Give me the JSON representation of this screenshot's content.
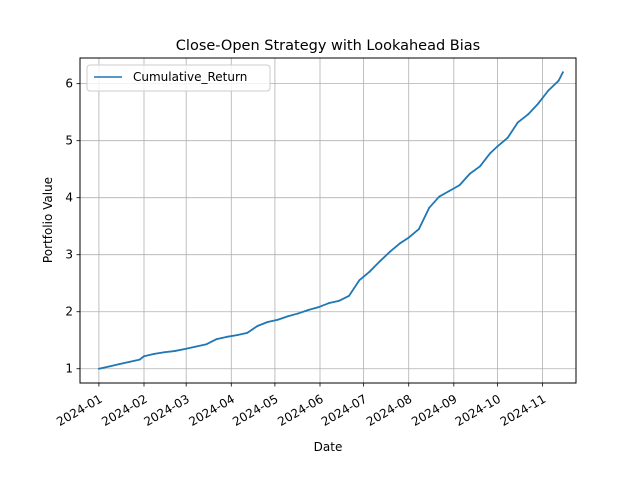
{
  "chart_data": {
    "type": "line",
    "title": "Close-Open Strategy with Lookahead Bias",
    "xlabel": "Date",
    "ylabel": "Portfolio Value",
    "grid": true,
    "legend_position": "top-left",
    "x_tick_labels": [
      "2024-01",
      "2024-02",
      "2024-03",
      "2024-04",
      "2024-05",
      "2024-06",
      "2024-07",
      "2024-08",
      "2024-09",
      "2024-10",
      "2024-11"
    ],
    "y_ticks": [
      1,
      2,
      3,
      4,
      5,
      6
    ],
    "xlim": [
      "2023-12-19",
      "2024-11-24"
    ],
    "ylim": [
      0.75,
      6.45
    ],
    "series": [
      {
        "name": "Cumulative_Return",
        "color": "#1f77b4",
        "x": [
          "2024-01-01",
          "2024-01-08",
          "2024-01-15",
          "2024-01-22",
          "2024-01-29",
          "2024-02-01",
          "2024-02-08",
          "2024-02-15",
          "2024-02-22",
          "2024-03-01",
          "2024-03-08",
          "2024-03-15",
          "2024-03-22",
          "2024-03-29",
          "2024-04-05",
          "2024-04-12",
          "2024-04-19",
          "2024-04-26",
          "2024-05-03",
          "2024-05-10",
          "2024-05-17",
          "2024-05-24",
          "2024-05-31",
          "2024-06-07",
          "2024-06-14",
          "2024-06-21",
          "2024-06-28",
          "2024-07-05",
          "2024-07-12",
          "2024-07-19",
          "2024-07-26",
          "2024-08-01",
          "2024-08-08",
          "2024-08-15",
          "2024-08-22",
          "2024-08-29",
          "2024-09-05",
          "2024-09-12",
          "2024-09-19",
          "2024-09-26",
          "2024-10-01",
          "2024-10-08",
          "2024-10-15",
          "2024-10-22",
          "2024-10-29",
          "2024-11-05",
          "2024-11-12",
          "2024-11-15"
        ],
        "y": [
          1.0,
          1.04,
          1.08,
          1.12,
          1.16,
          1.22,
          1.26,
          1.29,
          1.31,
          1.35,
          1.39,
          1.43,
          1.52,
          1.56,
          1.59,
          1.63,
          1.75,
          1.82,
          1.86,
          1.92,
          1.97,
          2.03,
          2.08,
          2.15,
          2.19,
          2.28,
          2.55,
          2.7,
          2.88,
          3.05,
          3.2,
          3.3,
          3.45,
          3.82,
          4.02,
          4.12,
          4.22,
          4.42,
          4.55,
          4.78,
          4.9,
          5.05,
          5.32,
          5.46,
          5.65,
          5.88,
          6.05,
          6.2
        ]
      }
    ]
  }
}
